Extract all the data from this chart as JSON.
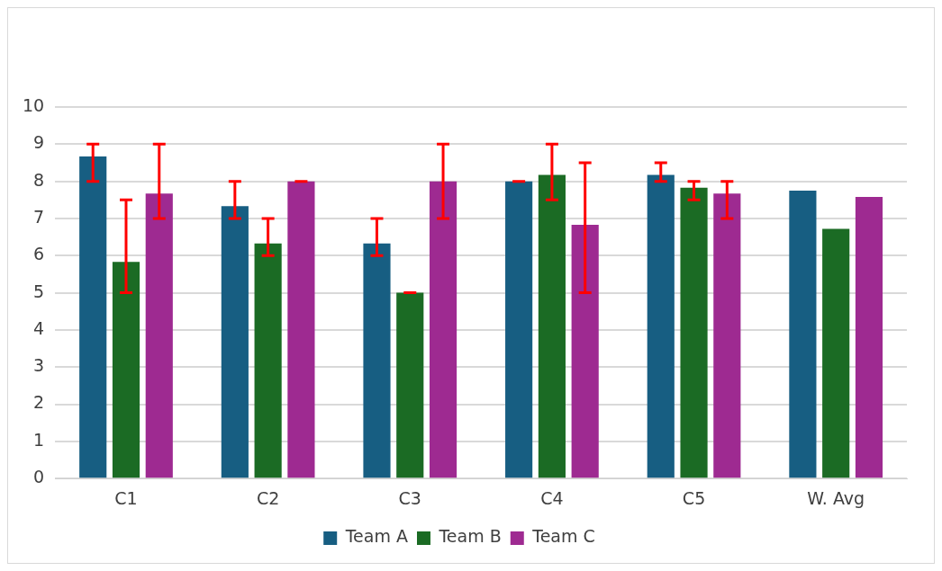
{
  "chart_data": {
    "type": "bar",
    "categories": [
      "C1",
      "C2",
      "C3",
      "C4",
      "C5",
      "W. Avg"
    ],
    "series": [
      {
        "name": "Team A",
        "color": "#175e82",
        "values": [
          8.67,
          7.33,
          6.33,
          8,
          8.17,
          7.75
        ],
        "errors": [
          [
            8,
            9
          ],
          [
            7,
            8
          ],
          [
            6,
            7
          ],
          [
            8,
            8
          ],
          [
            8,
            8.5
          ],
          null
        ]
      },
      {
        "name": "Team B",
        "color": "#1b6b24",
        "values": [
          5.83,
          6.33,
          5,
          8.17,
          7.83,
          6.72
        ],
        "errors": [
          [
            5,
            7.5
          ],
          [
            6,
            7
          ],
          [
            5,
            5
          ],
          [
            7.5,
            9
          ],
          [
            7.5,
            8
          ],
          null
        ]
      },
      {
        "name": "Team C",
        "color": "#9e2a91",
        "values": [
          7.67,
          8,
          8,
          6.83,
          7.67,
          7.58
        ],
        "errors": [
          [
            7,
            9
          ],
          [
            8,
            8
          ],
          [
            7,
            9
          ],
          [
            5,
            8.5
          ],
          [
            7,
            8
          ],
          null
        ]
      }
    ],
    "ylim": [
      0,
      10
    ],
    "yticks": [
      0,
      1,
      2,
      3,
      4,
      5,
      6,
      7,
      8,
      9,
      10
    ],
    "grid": "y",
    "legend": "bottom"
  }
}
